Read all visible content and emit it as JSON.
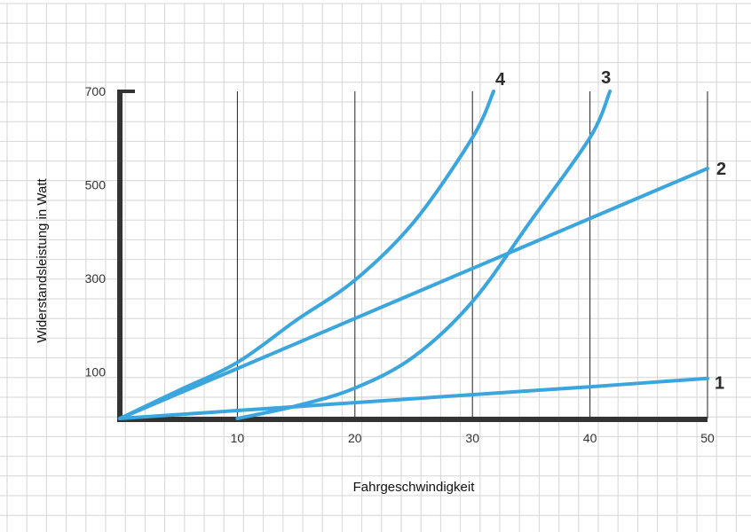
{
  "chart_data": {
    "type": "line",
    "title": "",
    "xlabel": "Fahrgeschwindigkeit",
    "ylabel": "Widerstandsleistung in Watt",
    "xlim": [
      0,
      50
    ],
    "ylim": [
      0,
      700
    ],
    "x_ticks": [
      10,
      20,
      30,
      40,
      50
    ],
    "y_ticks": [
      100,
      300,
      500,
      700
    ],
    "grid": true,
    "legend": "none",
    "colors": {
      "series": "#3aa6dd",
      "axis": "#333333",
      "gridline": "#222222",
      "paper_grid": "#d6d6d6"
    },
    "series": [
      {
        "name": "1",
        "x": [
          0,
          10,
          20,
          30,
          40,
          50
        ],
        "y": [
          0,
          17,
          34,
          51,
          68,
          86
        ]
      },
      {
        "name": "2",
        "x": [
          0,
          10,
          20,
          30,
          40,
          50
        ],
        "y": [
          0,
          107,
          214,
          321,
          428,
          535
        ]
      },
      {
        "name": "3",
        "x": [
          10,
          15,
          20,
          25,
          30,
          35,
          40,
          41.7
        ],
        "y": [
          0,
          27,
          65,
          132,
          250,
          424,
          601,
          700
        ]
      },
      {
        "name": "4",
        "x": [
          0,
          5,
          10,
          15,
          20,
          25,
          30,
          31.8
        ],
        "y": [
          0,
          60,
          120,
          210,
          296,
          420,
          601,
          700
        ]
      }
    ]
  }
}
